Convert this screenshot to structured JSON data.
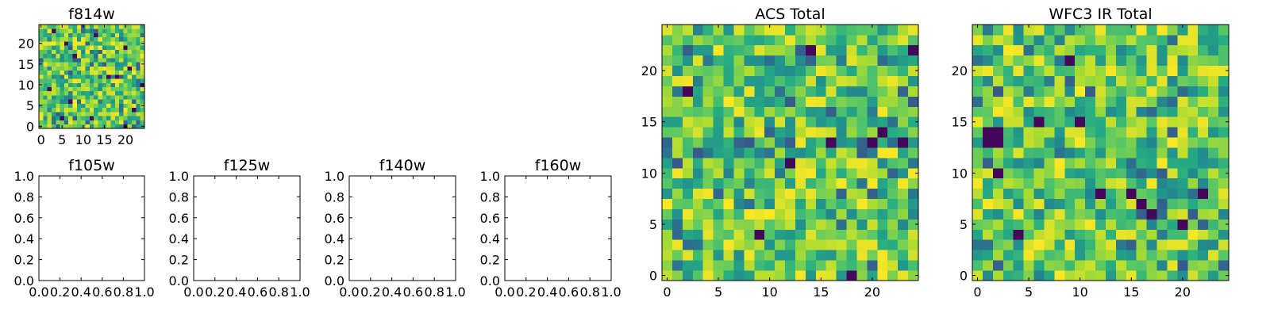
{
  "figure": {
    "colormap": "viridis",
    "colors": {
      "low": "#440154",
      "mid": "#21918c",
      "high": "#fde725",
      "frame": "#000000",
      "background": "#ffffff"
    }
  },
  "chart_data": [
    {
      "id": "f814w",
      "type": "heatmap",
      "title": "f814w",
      "grid_size": [
        25,
        25
      ],
      "xlim": [
        -0.5,
        24.5
      ],
      "ylim": [
        -0.5,
        24.5
      ],
      "xticks": [
        0,
        5,
        10,
        15,
        20
      ],
      "yticks": [
        0,
        5,
        10,
        15,
        20
      ],
      "xtick_labels": [
        "0",
        "5",
        "10",
        "15",
        "20"
      ],
      "ytick_labels": [
        "0",
        "5",
        "10",
        "15",
        "20"
      ],
      "colormap": "viridis",
      "values_range": [
        0,
        1
      ],
      "dark_cells": [
        [
          6,
          20
        ],
        [
          3,
          23
        ],
        [
          13,
          22
        ],
        [
          20,
          19
        ],
        [
          8,
          17
        ],
        [
          21,
          14
        ],
        [
          16,
          12
        ],
        [
          18,
          12
        ],
        [
          24,
          10
        ],
        [
          2,
          9
        ],
        [
          7,
          6
        ],
        [
          5,
          2
        ],
        [
          12,
          2
        ],
        [
          20,
          0
        ],
        [
          22,
          4
        ]
      ]
    },
    {
      "id": "f105w",
      "type": "heatmap",
      "title": "f105w",
      "empty": true,
      "xlim": [
        0.0,
        1.0
      ],
      "ylim": [
        0.0,
        1.0
      ],
      "xticks": [
        0.0,
        0.2,
        0.4,
        0.6,
        0.8,
        1.0
      ],
      "yticks": [
        0.0,
        0.2,
        0.4,
        0.6,
        0.8,
        1.0
      ],
      "xtick_labels": [
        "0.0",
        "0.2",
        "0.4",
        "0.6",
        "0.8",
        "1.0"
      ],
      "ytick_labels": [
        "0.0",
        "0.2",
        "0.4",
        "0.6",
        "0.8",
        "1.0"
      ]
    },
    {
      "id": "f125w",
      "type": "heatmap",
      "title": "f125w",
      "empty": true,
      "xlim": [
        0.0,
        1.0
      ],
      "ylim": [
        0.0,
        1.0
      ],
      "xticks": [
        0.0,
        0.2,
        0.4,
        0.6,
        0.8,
        1.0
      ],
      "yticks": [
        0.0,
        0.2,
        0.4,
        0.6,
        0.8,
        1.0
      ],
      "xtick_labels": [
        "0.0",
        "0.2",
        "0.4",
        "0.6",
        "0.8",
        "1.0"
      ],
      "ytick_labels": [
        "0.0",
        "0.2",
        "0.4",
        "0.6",
        "0.8",
        "1.0"
      ]
    },
    {
      "id": "f140w",
      "type": "heatmap",
      "title": "f140w",
      "empty": true,
      "xlim": [
        0.0,
        1.0
      ],
      "ylim": [
        0.0,
        1.0
      ],
      "xticks": [
        0.0,
        0.2,
        0.4,
        0.6,
        0.8,
        1.0
      ],
      "yticks": [
        0.0,
        0.2,
        0.4,
        0.6,
        0.8,
        1.0
      ],
      "xtick_labels": [
        "0.0",
        "0.2",
        "0.4",
        "0.6",
        "0.8",
        "1.0"
      ],
      "ytick_labels": [
        "0.0",
        "0.2",
        "0.4",
        "0.6",
        "0.8",
        "1.0"
      ]
    },
    {
      "id": "f160w",
      "type": "heatmap",
      "title": "f160w",
      "empty": true,
      "xlim": [
        0.0,
        1.0
      ],
      "ylim": [
        0.0,
        1.0
      ],
      "xticks": [
        0.0,
        0.2,
        0.4,
        0.6,
        0.8,
        1.0
      ],
      "yticks": [
        0.0,
        0.2,
        0.4,
        0.6,
        0.8,
        1.0
      ],
      "xtick_labels": [
        "0.0",
        "0.2",
        "0.4",
        "0.6",
        "0.8",
        "1.0"
      ],
      "ytick_labels": [
        "0.0",
        "0.2",
        "0.4",
        "0.6",
        "0.8",
        "1.0"
      ]
    },
    {
      "id": "acs-total",
      "type": "heatmap",
      "title": "ACS Total",
      "grid_size": [
        25,
        25
      ],
      "xlim": [
        -0.5,
        24.5
      ],
      "ylim": [
        -0.5,
        24.5
      ],
      "xticks": [
        0,
        5,
        10,
        15,
        20
      ],
      "yticks": [
        0,
        5,
        10,
        15,
        20
      ],
      "xtick_labels": [
        "0",
        "5",
        "10",
        "15",
        "20"
      ],
      "ytick_labels": [
        "0",
        "5",
        "10",
        "15",
        "20"
      ],
      "colormap": "viridis",
      "values_range": [
        0,
        1
      ],
      "dark_cells": [
        [
          14,
          22
        ],
        [
          2,
          18
        ],
        [
          21,
          14
        ],
        [
          16,
          13
        ],
        [
          20,
          13
        ],
        [
          23,
          13
        ],
        [
          12,
          11
        ],
        [
          9,
          4
        ],
        [
          18,
          0
        ],
        [
          24,
          22
        ]
      ]
    },
    {
      "id": "wfc3-ir-total",
      "type": "heatmap",
      "title": "WFC3 IR Total",
      "grid_size": [
        25,
        25
      ],
      "xlim": [
        -0.5,
        24.5
      ],
      "ylim": [
        -0.5,
        24.5
      ],
      "xticks": [
        0,
        5,
        10,
        15,
        20
      ],
      "yticks": [
        0,
        5,
        10,
        15,
        20
      ],
      "xtick_labels": [
        "0",
        "5",
        "10",
        "15",
        "20"
      ],
      "ytick_labels": [
        "0",
        "5",
        "10",
        "15",
        "20"
      ],
      "colormap": "viridis",
      "values_range": [
        0,
        1
      ],
      "dark_cells": [
        [
          1,
          14
        ],
        [
          2,
          14
        ],
        [
          1,
          13
        ],
        [
          2,
          13
        ],
        [
          9,
          21
        ],
        [
          6,
          15
        ],
        [
          10,
          15
        ],
        [
          2,
          10
        ],
        [
          12,
          8
        ],
        [
          15,
          8
        ],
        [
          22,
          8
        ],
        [
          16,
          7
        ],
        [
          17,
          6
        ],
        [
          4,
          4
        ],
        [
          20,
          5
        ]
      ]
    }
  ]
}
